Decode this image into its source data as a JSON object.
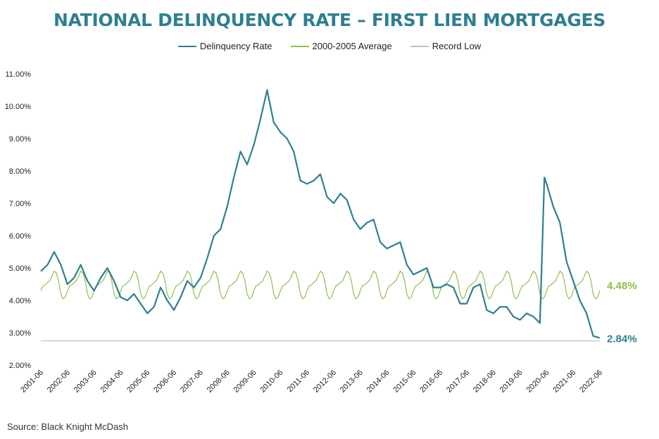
{
  "chart_data": {
    "type": "line",
    "title": "NATIONAL DELINQUENCY RATE – FIRST LIEN MORTGAGES",
    "xlabel": "",
    "ylabel": "",
    "x_tick_labels": [
      "2001-06",
      "2002-06",
      "2003-06",
      "2004-06",
      "2005-06",
      "2006-06",
      "2007-06",
      "2008-06",
      "2009-06",
      "2010-06",
      "2011-06",
      "2012-06",
      "2013-06",
      "2014-06",
      "2015-06",
      "2016-06",
      "2017-06",
      "2018-06",
      "2019-06",
      "2020-06",
      "2021-06",
      "2022-06"
    ],
    "x_range": [
      "2001-06",
      "2022-06"
    ],
    "y_tick_labels": [
      "2.00%",
      "3.00%",
      "4.00%",
      "5.00%",
      "6.00%",
      "7.00%",
      "8.00%",
      "9.00%",
      "10.00%",
      "11.00%"
    ],
    "ylim": [
      2.0,
      11.0
    ],
    "grid": false,
    "legend_position": "top-center",
    "series": [
      {
        "name": "Delinquency Rate",
        "color": "#2e7f92",
        "end_label": "2.84%",
        "points": [
          [
            "2001-06",
            4.9
          ],
          [
            "2001-09",
            5.1
          ],
          [
            "2001-12",
            5.5
          ],
          [
            "2002-03",
            5.1
          ],
          [
            "2002-06",
            4.5
          ],
          [
            "2002-09",
            4.7
          ],
          [
            "2002-12",
            5.1
          ],
          [
            "2003-03",
            4.6
          ],
          [
            "2003-06",
            4.3
          ],
          [
            "2003-09",
            4.7
          ],
          [
            "2003-12",
            5.0
          ],
          [
            "2004-03",
            4.6
          ],
          [
            "2004-06",
            4.1
          ],
          [
            "2004-09",
            4.0
          ],
          [
            "2004-12",
            4.2
          ],
          [
            "2005-03",
            3.9
          ],
          [
            "2005-06",
            3.6
          ],
          [
            "2005-09",
            3.8
          ],
          [
            "2005-12",
            4.4
          ],
          [
            "2006-03",
            4.0
          ],
          [
            "2006-06",
            3.7
          ],
          [
            "2006-09",
            4.1
          ],
          [
            "2006-12",
            4.6
          ],
          [
            "2007-03",
            4.4
          ],
          [
            "2007-06",
            4.7
          ],
          [
            "2007-09",
            5.3
          ],
          [
            "2007-12",
            6.0
          ],
          [
            "2008-03",
            6.2
          ],
          [
            "2008-06",
            6.9
          ],
          [
            "2008-09",
            7.8
          ],
          [
            "2008-12",
            8.6
          ],
          [
            "2009-03",
            8.2
          ],
          [
            "2009-06",
            8.8
          ],
          [
            "2009-09",
            9.6
          ],
          [
            "2009-12",
            10.5
          ],
          [
            "2010-03",
            9.5
          ],
          [
            "2010-06",
            9.2
          ],
          [
            "2010-09",
            9.0
          ],
          [
            "2010-12",
            8.6
          ],
          [
            "2011-03",
            7.7
          ],
          [
            "2011-06",
            7.6
          ],
          [
            "2011-09",
            7.7
          ],
          [
            "2011-12",
            7.9
          ],
          [
            "2012-03",
            7.2
          ],
          [
            "2012-06",
            7.0
          ],
          [
            "2012-09",
            7.3
          ],
          [
            "2012-12",
            7.1
          ],
          [
            "2013-03",
            6.5
          ],
          [
            "2013-06",
            6.2
          ],
          [
            "2013-09",
            6.4
          ],
          [
            "2013-12",
            6.5
          ],
          [
            "2014-03",
            5.8
          ],
          [
            "2014-06",
            5.6
          ],
          [
            "2014-09",
            5.7
          ],
          [
            "2014-12",
            5.8
          ],
          [
            "2015-03",
            5.1
          ],
          [
            "2015-06",
            4.8
          ],
          [
            "2015-09",
            4.9
          ],
          [
            "2015-12",
            5.0
          ],
          [
            "2016-03",
            4.4
          ],
          [
            "2016-06",
            4.4
          ],
          [
            "2016-09",
            4.5
          ],
          [
            "2016-12",
            4.4
          ],
          [
            "2017-03",
            3.9
          ],
          [
            "2017-06",
            3.9
          ],
          [
            "2017-09",
            4.4
          ],
          [
            "2017-12",
            4.5
          ],
          [
            "2018-03",
            3.7
          ],
          [
            "2018-06",
            3.6
          ],
          [
            "2018-09",
            3.8
          ],
          [
            "2018-12",
            3.8
          ],
          [
            "2019-03",
            3.5
          ],
          [
            "2019-06",
            3.4
          ],
          [
            "2019-09",
            3.6
          ],
          [
            "2019-12",
            3.5
          ],
          [
            "2020-03",
            3.3
          ],
          [
            "2020-05",
            7.8
          ],
          [
            "2020-06",
            7.6
          ],
          [
            "2020-09",
            6.9
          ],
          [
            "2020-12",
            6.4
          ],
          [
            "2021-03",
            5.2
          ],
          [
            "2021-06",
            4.6
          ],
          [
            "2021-09",
            4.0
          ],
          [
            "2021-12",
            3.6
          ],
          [
            "2022-03",
            2.9
          ],
          [
            "2022-06",
            2.84
          ]
        ]
      },
      {
        "name": "2000-2005 Average",
        "color": "#8dc04b",
        "end_label": "4.48%",
        "points": [
          [
            "Jan",
            4.85
          ],
          [
            "Feb",
            4.6
          ],
          [
            "Mar",
            4.2
          ],
          [
            "Apr",
            4.05
          ],
          [
            "May",
            4.1
          ],
          [
            "Jun",
            4.3
          ],
          [
            "Jul",
            4.45
          ],
          [
            "Aug",
            4.48
          ],
          [
            "Sep",
            4.55
          ],
          [
            "Oct",
            4.6
          ],
          [
            "Nov",
            4.75
          ],
          [
            "Dec",
            4.9
          ]
        ]
      },
      {
        "name": "Record Low",
        "color": "#c0c0c0",
        "value": 2.75
      }
    ]
  },
  "source": "Source: Black Knight McDash"
}
